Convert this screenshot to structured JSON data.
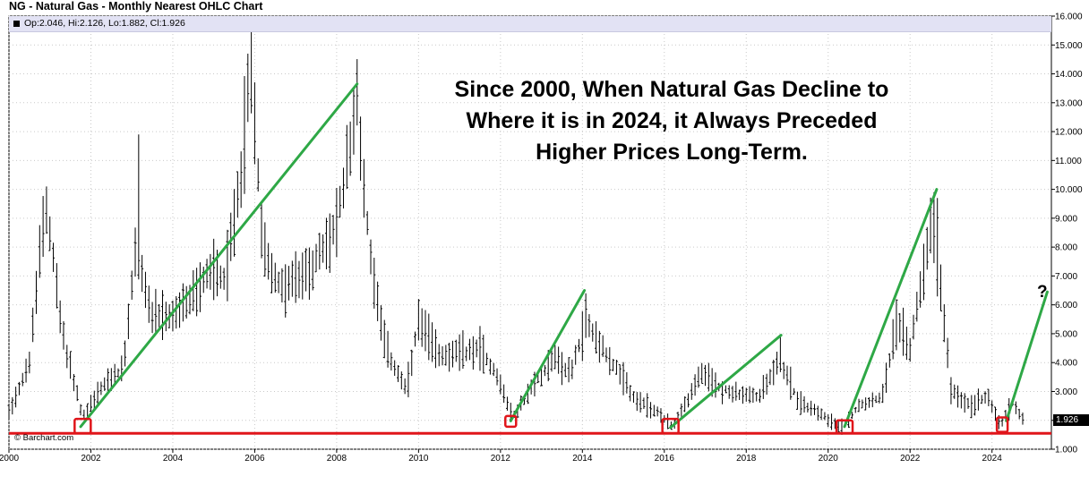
{
  "chart_data": {
    "type": "ohlc",
    "title": "NG - Natural Gas - Monthly Nearest OHLC Chart",
    "readout": "Op:2.046, Hi:2.126, Lo:1.882, Cl:1.926",
    "last_price": "1.926",
    "copyright": "© Barchart.com",
    "ylim": [
      1,
      16
    ],
    "y_ticks": [
      "1.000",
      "2.000",
      "3.000",
      "4.000",
      "5.000",
      "6.000",
      "7.000",
      "8.000",
      "9.000",
      "10.000",
      "11.000",
      "12.000",
      "13.000",
      "14.000",
      "15.000",
      "16.000"
    ],
    "x_range": [
      2000.0,
      2025.45
    ],
    "x_ticks": [
      "2000",
      "2002",
      "2004",
      "2006",
      "2008",
      "2010",
      "2012",
      "2014",
      "2016",
      "2018",
      "2020",
      "2022",
      "2024"
    ],
    "price_path": [
      [
        2000.0,
        2.3
      ],
      [
        2000.5,
        4.0
      ],
      [
        2000.9,
        9.8
      ],
      [
        2001.3,
        5.0
      ],
      [
        2001.8,
        2.1
      ],
      [
        2002.3,
        3.2
      ],
      [
        2002.8,
        3.8
      ],
      [
        2003.1,
        8.0
      ],
      [
        2003.5,
        5.5
      ],
      [
        2004.0,
        5.6
      ],
      [
        2004.5,
        6.3
      ],
      [
        2004.9,
        7.2
      ],
      [
        2005.3,
        7.0
      ],
      [
        2005.7,
        11.0
      ],
      [
        2005.9,
        14.5
      ],
      [
        2006.2,
        8.0
      ],
      [
        2006.6,
        6.6
      ],
      [
        2007.0,
        6.8
      ],
      [
        2007.5,
        7.5
      ],
      [
        2008.0,
        8.7
      ],
      [
        2008.5,
        13.0
      ],
      [
        2008.8,
        8.0
      ],
      [
        2009.2,
        4.5
      ],
      [
        2009.7,
        3.0
      ],
      [
        2010.0,
        5.4
      ],
      [
        2010.5,
        4.3
      ],
      [
        2011.0,
        4.3
      ],
      [
        2011.5,
        4.5
      ],
      [
        2011.9,
        3.6
      ],
      [
        2012.3,
        2.1
      ],
      [
        2012.8,
        3.2
      ],
      [
        2013.3,
        4.2
      ],
      [
        2013.7,
        3.6
      ],
      [
        2014.1,
        5.4
      ],
      [
        2014.5,
        4.5
      ],
      [
        2014.9,
        3.6
      ],
      [
        2015.3,
        2.7
      ],
      [
        2015.8,
        2.3
      ],
      [
        2016.2,
        1.8
      ],
      [
        2016.6,
        2.8
      ],
      [
        2016.9,
        3.6
      ],
      [
        2017.4,
        3.1
      ],
      [
        2017.8,
        2.9
      ],
      [
        2018.3,
        2.8
      ],
      [
        2018.8,
        4.1
      ],
      [
        2019.3,
        2.6
      ],
      [
        2019.8,
        2.3
      ],
      [
        2020.3,
        1.7
      ],
      [
        2020.8,
        2.6
      ],
      [
        2021.3,
        2.8
      ],
      [
        2021.7,
        5.5
      ],
      [
        2022.0,
        4.5
      ],
      [
        2022.5,
        8.7
      ],
      [
        2022.8,
        6.0
      ],
      [
        2023.0,
        3.0
      ],
      [
        2023.5,
        2.5
      ],
      [
        2023.9,
        2.9
      ],
      [
        2024.2,
        1.8
      ],
      [
        2024.5,
        2.6
      ],
      [
        2024.8,
        1.93
      ]
    ],
    "trend_lines": [
      {
        "from": [
          2001.75,
          1.78
        ],
        "to": [
          2008.5,
          13.65
        ]
      },
      {
        "from": [
          2012.25,
          1.98
        ],
        "to": [
          2014.05,
          6.5
        ]
      },
      {
        "from": [
          2016.15,
          1.75
        ],
        "to": [
          2018.85,
          4.95
        ]
      },
      {
        "from": [
          2020.4,
          1.78
        ],
        "to": [
          2022.65,
          10.0
        ]
      },
      {
        "from": [
          2024.35,
          1.98
        ],
        "to": [
          2025.35,
          6.45
        ]
      }
    ],
    "support_level": 1.55,
    "low_markers": [
      {
        "x": 2001.8,
        "low": 1.55,
        "high": 2.05
      },
      {
        "x": 2012.25,
        "low": 1.78,
        "high": 2.15
      },
      {
        "x": 2016.15,
        "low": 1.55,
        "high": 2.05
      },
      {
        "x": 2020.4,
        "low": 1.55,
        "high": 2.0
      },
      {
        "x": 2024.25,
        "low": 1.6,
        "high": 2.1
      }
    ],
    "annotation_lines": [
      "Since 2000, When Natural Gas Decline to",
      "Where it is in 2024, it Always Preceded",
      "Higher Prices Long-Term."
    ],
    "question_mark": "?",
    "colors": {
      "trend": "#2ea846",
      "support": "#e0151a",
      "bars": "#000000",
      "readout_bg": "#e2e2f4"
    }
  }
}
